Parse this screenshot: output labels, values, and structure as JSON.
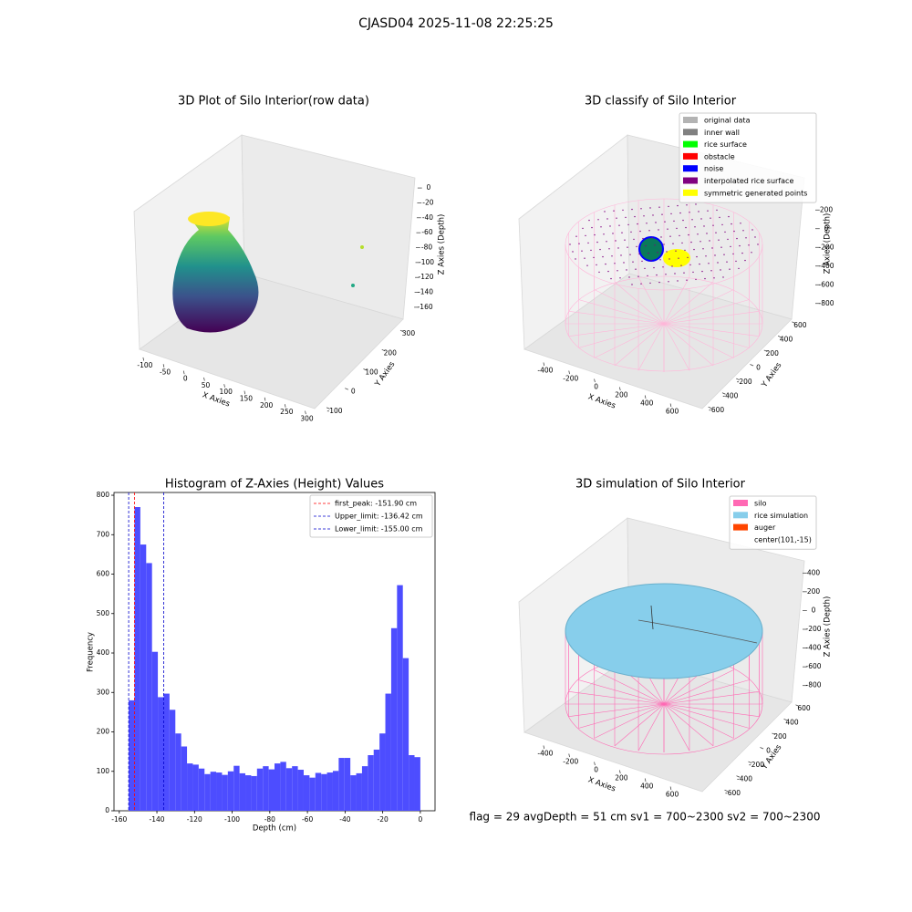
{
  "title": "CJASD04 2025-11-08 22:25:25",
  "footer": "flag = 29  avgDepth = 51 cm    sv1 = 700~2300  sv2 = 700~2300",
  "chart_data": [
    {
      "type": "scatter3d",
      "title": "3D Plot of Silo Interior(row data)",
      "xlabel": "X Axies",
      "ylabel": "Y Axies",
      "zlabel": "Z Axies (Depth)",
      "xlim": [
        -120,
        310
      ],
      "ylim": [
        -120,
        320
      ],
      "zlim": [
        -165,
        5
      ],
      "xticks": [
        -100,
        -50,
        0,
        50,
        100,
        150,
        200,
        250,
        300
      ],
      "yticks": [
        -100,
        0,
        100,
        200,
        300
      ],
      "zticks": [
        0,
        -20,
        -40,
        -60,
        -80,
        -100,
        -120,
        -140,
        -160
      ]
    },
    {
      "type": "scatter3d",
      "title": "3D classify of Silo Interior",
      "xlabel": "X Axies",
      "ylabel": "Y Axies",
      "zlabel": "Z Axies (Depth)",
      "xlim": [
        -500,
        700
      ],
      "ylim": [
        -700,
        700
      ],
      "zlim": [
        -900,
        300
      ],
      "xticks": [
        -400,
        -200,
        0,
        200,
        400,
        600
      ],
      "yticks": [
        -600,
        -400,
        -200,
        0,
        200,
        400,
        600
      ],
      "zticks": [
        200,
        0,
        -200,
        -400,
        -600,
        -800
      ],
      "legend": [
        {
          "name": "original data",
          "color": "#b3b3b3"
        },
        {
          "name": "inner wall",
          "color": "#808080"
        },
        {
          "name": "rice surface",
          "color": "#00ff00"
        },
        {
          "name": "obstacle",
          "color": "#ff0000"
        },
        {
          "name": "noise",
          "color": "#0000ff"
        },
        {
          "name": "interpolated rice surface",
          "color": "#800080"
        },
        {
          "name": "symmetric generated points",
          "color": "#ffff00"
        }
      ]
    },
    {
      "type": "histogram",
      "title": "Histogram of Z-Axies (Height) Values",
      "xlabel": "Depth (cm)",
      "ylabel": "Frequency",
      "color": "#4d4dff",
      "bins": [
        -155.0,
        -151.9,
        -148.8,
        -145.7,
        -142.6,
        -139.5,
        -136.4,
        -133.3,
        -130.2,
        -127.1,
        -124.0,
        -120.9,
        -117.8,
        -114.7,
        -111.6,
        -108.5,
        -105.4,
        -102.3,
        -99.2,
        -96.1,
        -93.0,
        -89.9,
        -86.8,
        -83.7,
        -80.6,
        -77.5,
        -74.4,
        -71.3,
        -68.2,
        -65.1,
        -62.0,
        -58.9,
        -55.8,
        -52.7,
        -49.6,
        -46.5,
        -43.4,
        -40.3,
        -37.2,
        -34.1,
        -31.0,
        -27.9,
        -24.8,
        -21.7,
        -18.6,
        -15.5,
        -12.4,
        -9.3,
        -6.2,
        -3.1,
        0.0
      ],
      "values": [
        280,
        770,
        675,
        628,
        403,
        288,
        297,
        256,
        196,
        163,
        120,
        117,
        107,
        93,
        99,
        97,
        91,
        100,
        114,
        95,
        90,
        88,
        107,
        113,
        105,
        120,
        124,
        108,
        113,
        104,
        90,
        84,
        96,
        93,
        97,
        101,
        134,
        134,
        90,
        95,
        113,
        141,
        155,
        196,
        297,
        463,
        572,
        387,
        141,
        136
      ],
      "xlim": [
        -162.8,
        7.8
      ],
      "ylim": [
        0,
        807
      ],
      "xticks": [
        -160,
        -140,
        -120,
        -100,
        -80,
        -60,
        -40,
        -20,
        0
      ],
      "yticks": [
        0,
        100,
        200,
        300,
        400,
        500,
        600,
        700,
        800
      ],
      "vlines": [
        {
          "label": "first_peak: -151.90 cm",
          "value": -151.9,
          "color": "#ff0000"
        },
        {
          "label": "Upper_limit: -136.42 cm",
          "value": -136.42,
          "color": "#0000cc"
        },
        {
          "label": "Lower_limit: -155.00 cm",
          "value": -155.0,
          "color": "#0000cc"
        }
      ],
      "legend_loc": "upper right"
    },
    {
      "type": "surface3d",
      "title": "3D simulation of Silo Interior",
      "xlabel": "X Axies",
      "ylabel": "Y Axies",
      "zlabel": "Z Axies (Depth)",
      "xlim": [
        -500,
        700
      ],
      "ylim": [
        -700,
        700
      ],
      "zlim": [
        -900,
        500
      ],
      "xticks": [
        -400,
        -200,
        0,
        200,
        400,
        600
      ],
      "yticks": [
        -600,
        -400,
        -200,
        0,
        200,
        400,
        600
      ],
      "zticks": [
        400,
        200,
        0,
        -200,
        -400,
        -600,
        -800
      ],
      "legend": [
        {
          "name": "silo",
          "color": "#ff69b4"
        },
        {
          "name": "rice simulation",
          "color": "#87ceeb"
        },
        {
          "name": "auger",
          "color": "#ff4500"
        },
        {
          "name": "center(101,-15)",
          "color": "#ffffff"
        }
      ]
    }
  ]
}
